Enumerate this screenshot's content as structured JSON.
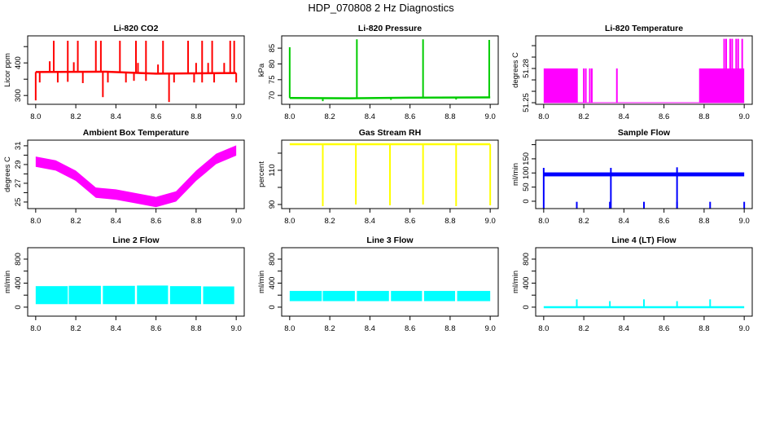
{
  "title": "HDP_070808  2 Hz Diagnostics",
  "chart_data": {
    "type": "line",
    "xlim": [
      7.96,
      9.04
    ],
    "xticks": [
      8.0,
      8.2,
      8.4,
      8.6,
      8.8,
      9.0
    ],
    "xtick_labels": [
      "8.0",
      "8.2",
      "8.4",
      "8.6",
      "8.8",
      "9.0"
    ],
    "panels": [
      {
        "title": "Li-820 CO2",
        "ylabel": "Licor ppm",
        "color": "#ff0000",
        "ylim": [
          273,
          483
        ],
        "yticks": [
          300,
          350,
          400,
          450
        ],
        "ytick_labels": [
          "300",
          "",
          "400",
          ""
        ],
        "baseline": [
          [
            8.0,
            372
          ],
          [
            8.35,
            373
          ],
          [
            8.6,
            367
          ],
          [
            9.0,
            369
          ]
        ],
        "spikes": [
          [
            8.0,
            285
          ],
          [
            8.09,
            468
          ],
          [
            8.16,
            468
          ],
          [
            8.21,
            468
          ],
          [
            8.3,
            468
          ],
          [
            8.325,
            468
          ],
          [
            8.42,
            468
          ],
          [
            8.5,
            468
          ],
          [
            8.55,
            468
          ],
          [
            8.635,
            468
          ],
          [
            8.76,
            468
          ],
          [
            8.83,
            468
          ],
          [
            8.88,
            468
          ],
          [
            8.97,
            468
          ],
          [
            8.99,
            468
          ],
          [
            8.07,
            405
          ],
          [
            8.19,
            402
          ],
          [
            8.51,
            400
          ],
          [
            8.61,
            395
          ],
          [
            8.8,
            400
          ],
          [
            8.86,
            400
          ],
          [
            8.94,
            400
          ],
          [
            8.02,
            340
          ],
          [
            8.11,
            340
          ],
          [
            8.16,
            342
          ],
          [
            8.235,
            338
          ],
          [
            8.335,
            295
          ],
          [
            8.36,
            340
          ],
          [
            8.45,
            340
          ],
          [
            8.49,
            345
          ],
          [
            8.55,
            345
          ],
          [
            8.665,
            280
          ],
          [
            8.69,
            340
          ],
          [
            8.79,
            340
          ],
          [
            8.83,
            340
          ],
          [
            8.89,
            340
          ],
          [
            9.0,
            340
          ]
        ]
      },
      {
        "title": "Li-820 Pressure",
        "ylabel": "kPa",
        "color": "#00cc00",
        "ylim": [
          67.2,
          88.9
        ],
        "yticks": [
          70,
          75,
          80,
          85
        ],
        "ytick_labels": [
          "70",
          "75",
          "80",
          "85"
        ],
        "baseline": [
          [
            8.0,
            69.2
          ],
          [
            8.3,
            69.1
          ],
          [
            8.6,
            69.3
          ],
          [
            9.0,
            69.4
          ]
        ],
        "spikes": [
          [
            8.0,
            85.3
          ],
          [
            8.335,
            87.8
          ],
          [
            8.665,
            87.8
          ],
          [
            8.995,
            87.6
          ],
          [
            8.165,
            68.2
          ],
          [
            8.505,
            68.6
          ],
          [
            8.83,
            68.7
          ]
        ]
      },
      {
        "title": "Li-820 Temperature",
        "ylabel": "degrees C",
        "color": "#ff00ff",
        "ylim": [
          51.2486,
          51.3086
        ],
        "yticks": [
          51.25,
          51.26,
          51.27,
          51.28,
          51.29,
          51.3
        ],
        "ytick_labels": [
          "51.25",
          "",
          "",
          "51.28",
          "",
          ""
        ],
        "baseline": [
          [
            8.0,
            51.25
          ],
          [
            9.0,
            51.25
          ]
        ],
        "bands": [
          [
            8.0,
            8.17,
            51.25,
            51.28
          ],
          [
            8.775,
            9.0,
            51.25,
            51.28
          ]
        ],
        "spikes": [
          [
            8.2,
            51.28
          ],
          [
            8.21,
            51.28
          ],
          [
            8.23,
            51.28
          ],
          [
            8.24,
            51.28
          ],
          [
            8.365,
            51.28
          ],
          [
            8.9,
            51.306
          ],
          [
            8.91,
            51.306
          ],
          [
            8.93,
            51.306
          ],
          [
            8.94,
            51.306
          ],
          [
            8.96,
            51.306
          ],
          [
            8.97,
            51.306
          ],
          [
            8.99,
            51.306
          ]
        ]
      },
      {
        "title": "Ambient Box Temperature",
        "ylabel": "degrees C",
        "color": "#ff00ff",
        "ylim": [
          24.3,
          31.6
        ],
        "yticks": [
          25,
          26,
          27,
          28,
          29,
          30,
          31
        ],
        "ytick_labels": [
          "25",
          "",
          "27",
          "",
          "29",
          "",
          "31"
        ],
        "band_curve": {
          "x": [
            8.0,
            8.1,
            8.2,
            8.3,
            8.4,
            8.5,
            8.6,
            8.7,
            8.8,
            8.9,
            9.0
          ],
          "y": [
            29.3,
            28.9,
            27.8,
            26.0,
            25.8,
            25.4,
            25.0,
            25.6,
            27.8,
            29.6,
            30.5
          ],
          "half_width": 0.55
        }
      },
      {
        "title": "Gas Stream RH",
        "ylabel": "percent",
        "color": "#ffff00",
        "ylim": [
          87.6,
          127.6
        ],
        "yticks": [
          90,
          100,
          110,
          120
        ],
        "ytick_labels": [
          "90",
          "",
          "110",
          ""
        ],
        "baseline": [
          [
            8.0,
            125.2
          ],
          [
            9.0,
            125.2
          ]
        ],
        "spikes": [
          [
            8.165,
            89
          ],
          [
            8.33,
            90
          ],
          [
            8.5,
            89.5
          ],
          [
            8.665,
            90
          ],
          [
            8.83,
            89
          ],
          [
            9.0,
            89.5
          ]
        ]
      },
      {
        "title": "Sample Flow",
        "ylabel": "ml/min",
        "color": "#0000ff",
        "ylim": [
          -26,
          216
        ],
        "yticks": [
          0,
          50,
          100,
          150,
          200
        ],
        "ytick_labels": [
          "0",
          "50",
          "100",
          "150",
          ""
        ],
        "bands": [
          [
            8.0,
            9.0,
            88,
            102
          ]
        ],
        "spikes": [
          [
            8.0,
            118
          ],
          [
            8.165,
            -2
          ],
          [
            8.33,
            -2
          ],
          [
            8.335,
            118
          ],
          [
            8.5,
            -2
          ],
          [
            8.665,
            -2
          ],
          [
            8.665,
            120
          ],
          [
            8.83,
            -2
          ],
          [
            9.0,
            -2
          ]
        ]
      },
      {
        "title": "Line 2 Flow",
        "ylabel": "ml/min",
        "color": "#00ffff",
        "ylim": [
          -150,
          990
        ],
        "yticks": [
          0,
          200,
          400,
          600,
          800
        ],
        "ytick_labels": [
          "0",
          "",
          "400",
          "",
          "800"
        ],
        "bands": [
          [
            8.0,
            8.16,
            50,
            350
          ],
          [
            8.165,
            8.325,
            50,
            355
          ],
          [
            8.335,
            8.495,
            50,
            355
          ],
          [
            8.505,
            8.66,
            50,
            360
          ],
          [
            8.67,
            8.825,
            50,
            350
          ],
          [
            8.835,
            8.99,
            50,
            345
          ]
        ]
      },
      {
        "title": "Line 3 Flow",
        "ylabel": "ml/min",
        "color": "#00ffff",
        "ylim": [
          -150,
          990
        ],
        "yticks": [
          0,
          200,
          400,
          600,
          800
        ],
        "ytick_labels": [
          "0",
          "",
          "400",
          "",
          "800"
        ],
        "bands": [
          [
            8.0,
            8.16,
            100,
            270
          ],
          [
            8.165,
            8.325,
            100,
            270
          ],
          [
            8.335,
            8.495,
            100,
            270
          ],
          [
            8.505,
            8.66,
            100,
            270
          ],
          [
            8.67,
            8.825,
            100,
            270
          ],
          [
            8.835,
            9.0,
            100,
            270
          ]
        ]
      },
      {
        "title": "Line 4 (LT) Flow",
        "ylabel": "ml/min",
        "color": "#00ffff",
        "ylim": [
          -150,
          990
        ],
        "yticks": [
          0,
          200,
          400,
          600,
          800
        ],
        "ytick_labels": [
          "0",
          "",
          "400",
          "",
          "800"
        ],
        "baseline": [
          [
            8.0,
            0
          ],
          [
            9.0,
            0
          ]
        ],
        "spikes": [
          [
            8.165,
            130
          ],
          [
            8.33,
            100
          ],
          [
            8.5,
            130
          ],
          [
            8.665,
            100
          ],
          [
            8.83,
            130
          ]
        ]
      }
    ]
  }
}
